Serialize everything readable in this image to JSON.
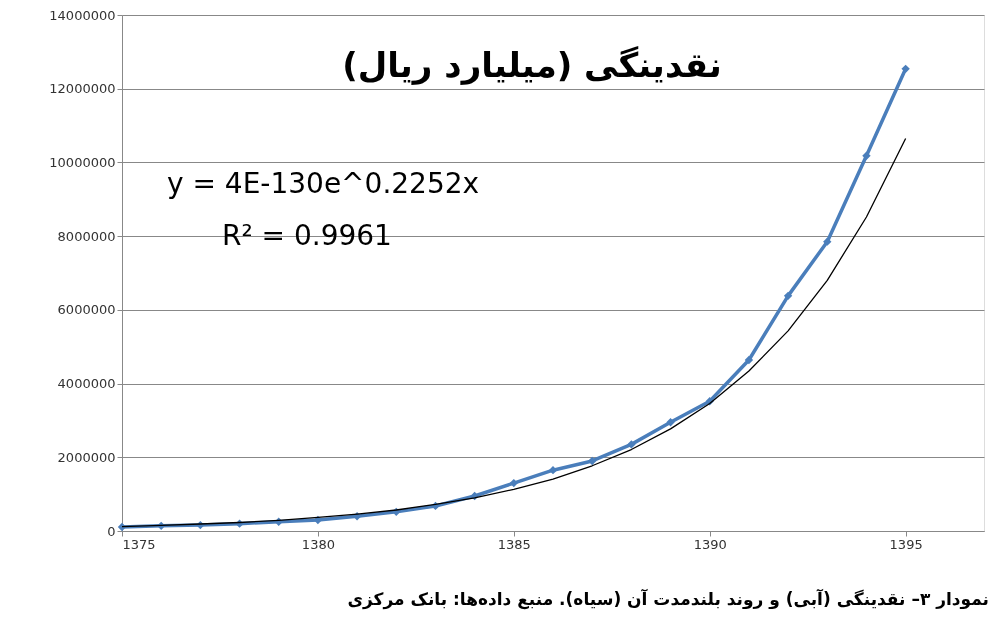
{
  "chart_data": {
    "type": "line",
    "title": "نقدینگی (میلیارد ریال)",
    "annotations": [
      "y = 4E-130e^0.2252x",
      "R² = 0.9961",
      "نمودار ۳– نقدینگی (آبی) و روند بلندمدت آن (سیاه). منبع داده‌ها: بانک مرکزی"
    ],
    "x": [
      1375,
      1376,
      1377,
      1378,
      1379,
      1380,
      1381,
      1382,
      1383,
      1384,
      1385,
      1386,
      1387,
      1388,
      1389,
      1390,
      1391,
      1392,
      1393,
      1394,
      1395
    ],
    "series": [
      {
        "color": "#4a7ebb",
        "marker": "diamond",
        "values": [
          110000,
          140000,
          160000,
          200000,
          250000,
          300000,
          400000,
          520000,
          680000,
          950000,
          1300000,
          1650000,
          1900000,
          2350000,
          2950000,
          3520000,
          4640000,
          6380000,
          7850000,
          10180000,
          12540000
        ]
      },
      {
        "type": "line",
        "color": "#000000",
        "marker": "none",
        "values": [
          120000,
          150000,
          190000,
          230000,
          290000,
          370000,
          460000,
          570000,
          720000,
          900000,
          1130000,
          1410000,
          1770000,
          2210000,
          2770000,
          3460000,
          4340000,
          5430000,
          6800000,
          8520000,
          10650000
        ]
      }
    ],
    "xlim": [
      1375,
      1397
    ],
    "xticks": [
      1375,
      1380,
      1385,
      1390,
      1395
    ],
    "ylim": [
      0,
      14000000
    ],
    "yticks": [
      0,
      2000000,
      4000000,
      6000000,
      8000000,
      10000000,
      12000000,
      14000000
    ],
    "grid": "y"
  }
}
